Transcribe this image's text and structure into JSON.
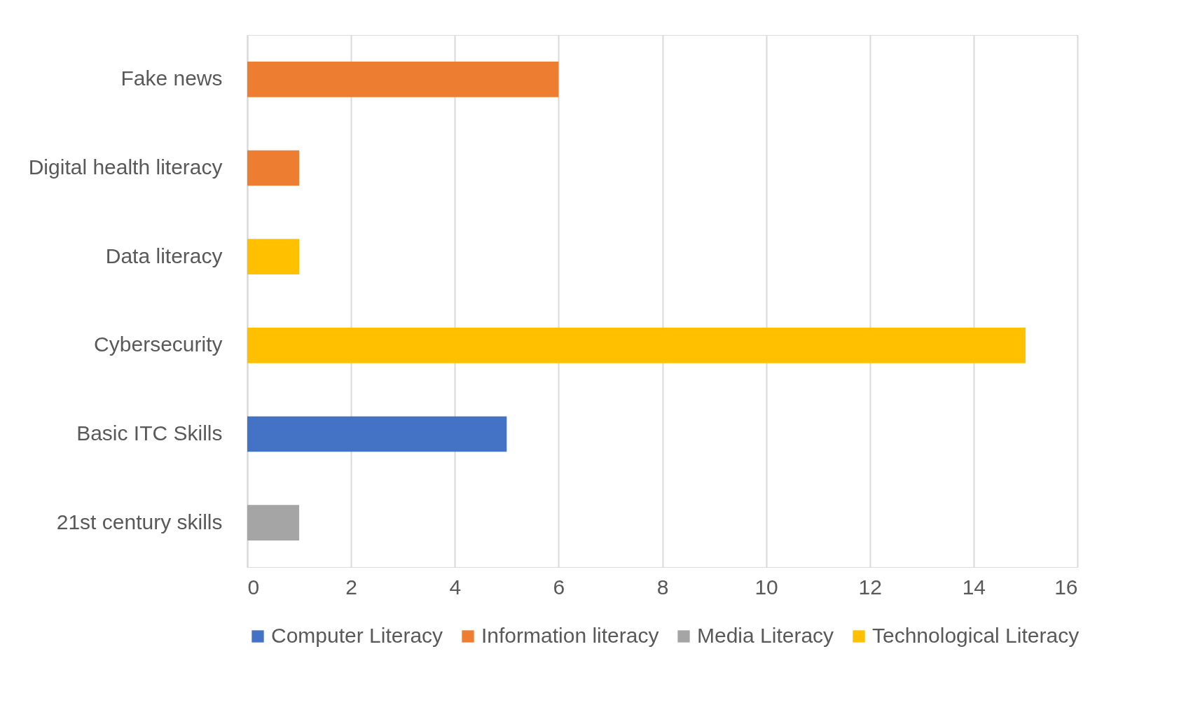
{
  "chart_data": {
    "type": "bar",
    "orientation": "horizontal",
    "categories": [
      "Fake news",
      "Digital health literacy",
      "Data literacy",
      "Cybersecurity",
      "Basic ITC Skills",
      "21st century skills"
    ],
    "series": [
      {
        "name": "Computer Literacy",
        "color": "#4472c4",
        "values": [
          null,
          null,
          null,
          null,
          5,
          null
        ]
      },
      {
        "name": "Information literacy",
        "color": "#ed7d31",
        "values": [
          6,
          1,
          null,
          null,
          null,
          null
        ]
      },
      {
        "name": "Media Literacy",
        "color": "#a5a5a5",
        "values": [
          null,
          null,
          null,
          null,
          null,
          1
        ]
      },
      {
        "name": "Technological Literacy",
        "color": "#ffc000",
        "values": [
          null,
          null,
          1,
          15,
          null,
          null
        ]
      }
    ],
    "xlim": [
      0,
      16
    ],
    "xticks": [
      0,
      2,
      4,
      6,
      8,
      10,
      12,
      14,
      16
    ],
    "grid": "x",
    "legend": "bottom"
  }
}
